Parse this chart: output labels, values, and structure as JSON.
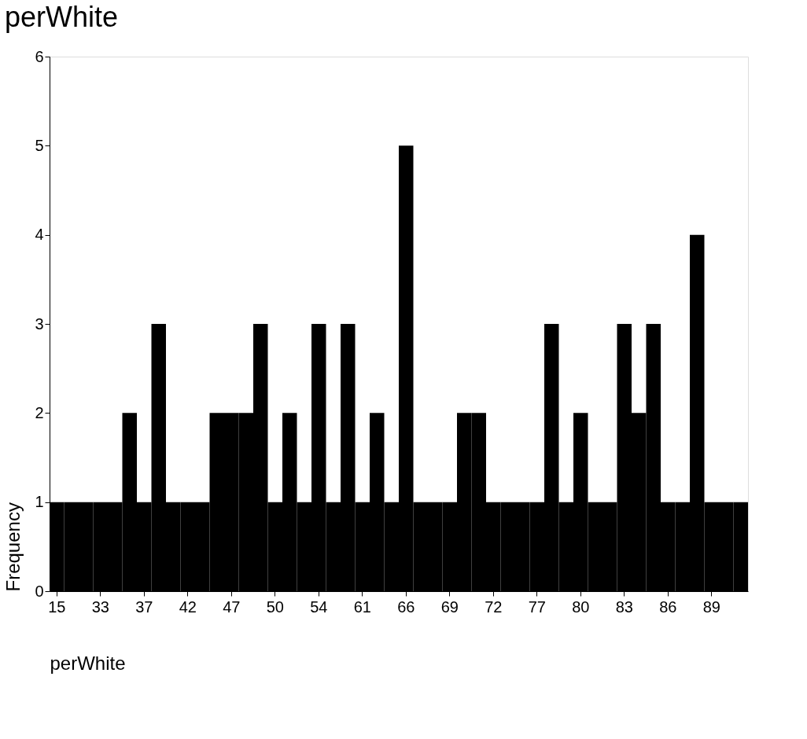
{
  "chart_data": {
    "type": "bar",
    "title": "perWhite",
    "xlabel": "perWhite",
    "ylabel": "Frequency",
    "categories": [
      "15",
      null,
      null,
      "33",
      null,
      null,
      "37",
      null,
      null,
      "42",
      null,
      null,
      "47",
      null,
      null,
      "50",
      null,
      null,
      "54",
      null,
      null,
      "61",
      null,
      null,
      "66",
      null,
      null,
      "69",
      null,
      null,
      "72",
      null,
      null,
      "77",
      null,
      null,
      "80",
      null,
      null,
      "83",
      null,
      null,
      "86",
      null,
      null,
      "89",
      null,
      null
    ],
    "values": [
      1,
      1,
      1,
      1,
      1,
      2,
      1,
      3,
      1,
      1,
      1,
      2,
      2,
      2,
      3,
      1,
      2,
      1,
      3,
      1,
      3,
      1,
      2,
      1,
      5,
      1,
      1,
      1,
      2,
      2,
      1,
      1,
      1,
      1,
      3,
      1,
      2,
      1,
      1,
      3,
      2,
      3,
      1,
      1,
      4,
      1,
      1,
      1
    ],
    "color": "#000000",
    "ylim": [
      0,
      6
    ],
    "yticks": [
      0,
      1,
      2,
      3,
      4,
      5,
      6
    ]
  }
}
